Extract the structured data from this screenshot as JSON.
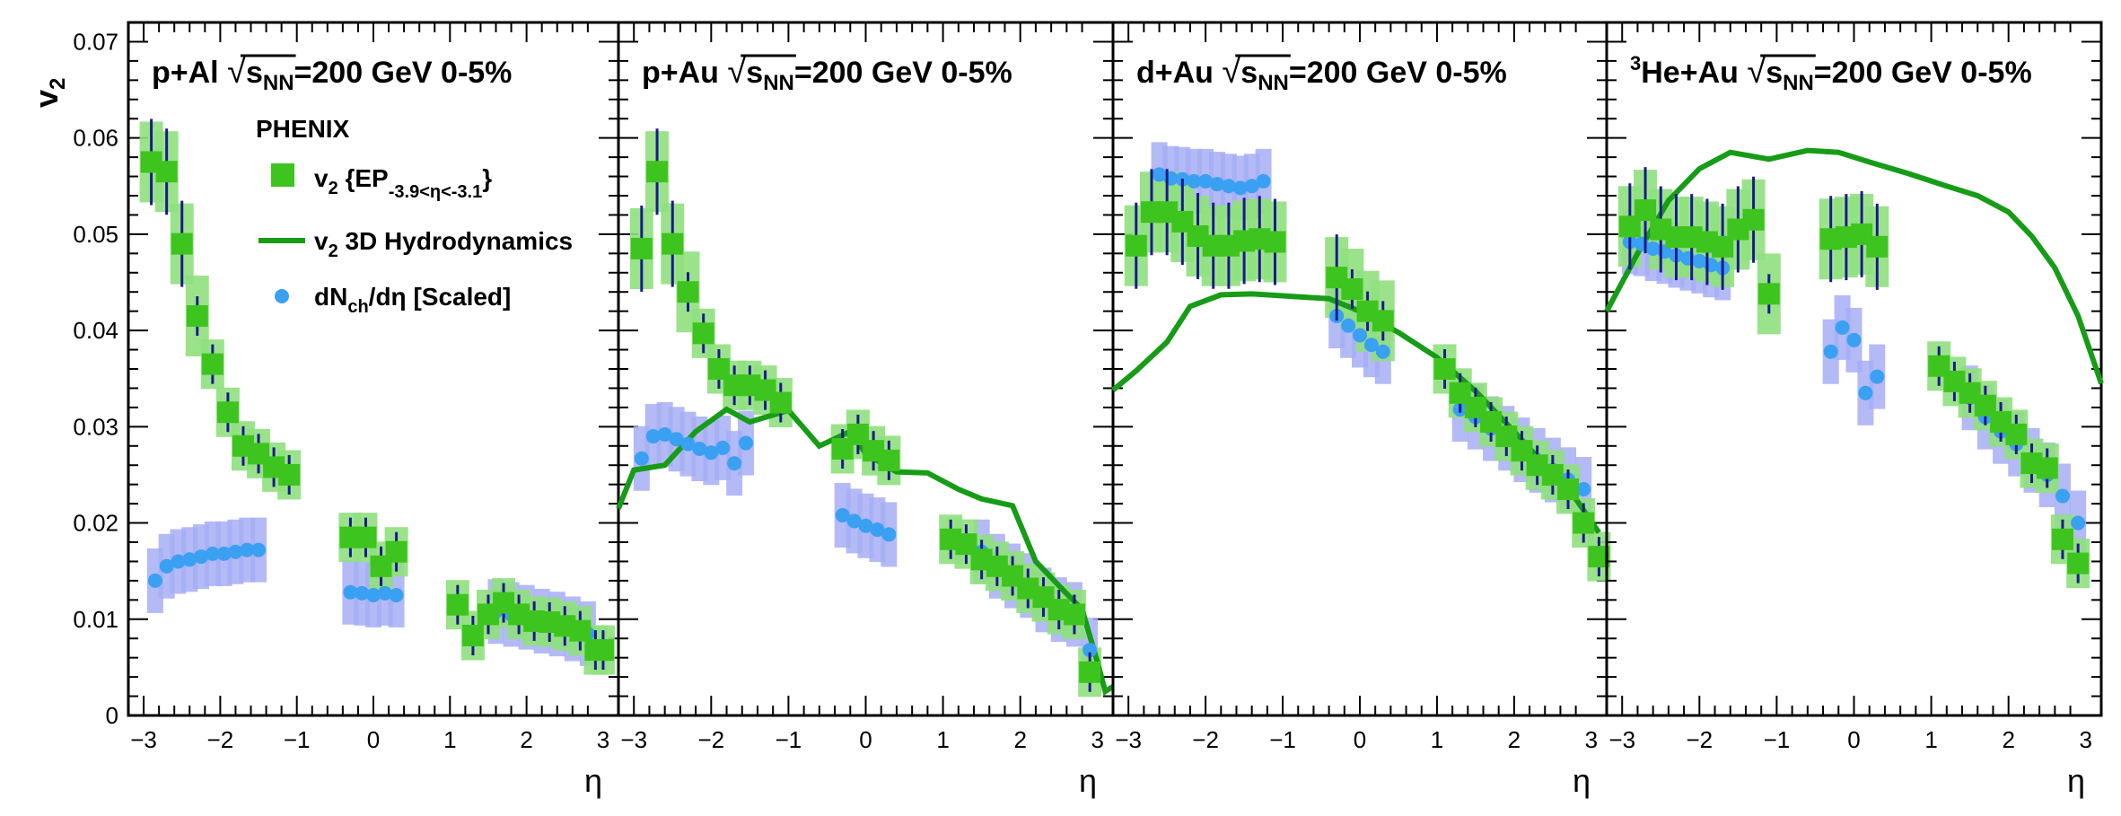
{
  "chart_data": {
    "type": "scatter",
    "ylabel": "v2",
    "xlabel": "η",
    "ylim": [
      0,
      0.072
    ],
    "yticks": [
      "0",
      "0.01",
      "0.02",
      "0.03",
      "0.04",
      "0.05",
      "0.06",
      "0.07"
    ],
    "xticks": [
      "−3",
      "−2",
      "−1",
      "0",
      "1",
      "2",
      "3"
    ],
    "xlim": [
      -3.2,
      3.2
    ],
    "experiment": "PHENIX",
    "legend": {
      "ep": "v2 {EP-3.9<η<-3.1}",
      "hydro": "v2 3D Hydrodynamics",
      "dndeta": "dNch/dη [Scaled]"
    },
    "colors": {
      "ep": "#3ec41e",
      "ep_sys": "#8fe07e",
      "hydro": "#169c16",
      "dndeta": "#3aa0f2",
      "dndeta_sys": "#a6aef5",
      "stat": "#1a1a8c"
    },
    "panels": [
      {
        "system": "p+Al",
        "energy": "=200 GeV 0-5%",
        "ep": [
          [
            -2.9,
            0.0575
          ],
          [
            -2.7,
            0.0565
          ],
          [
            -2.5,
            0.049
          ],
          [
            -2.3,
            0.0415
          ],
          [
            -2.1,
            0.0365
          ],
          [
            -1.9,
            0.0315
          ],
          [
            -1.7,
            0.028
          ],
          [
            -1.5,
            0.0272
          ],
          [
            -1.3,
            0.0258
          ],
          [
            -1.1,
            0.025
          ],
          [
            -0.3,
            0.0185
          ],
          [
            -0.1,
            0.0185
          ],
          [
            0.1,
            0.0155
          ],
          [
            0.3,
            0.017
          ],
          [
            1.1,
            0.0115
          ],
          [
            1.3,
            0.0083
          ],
          [
            1.5,
            0.0105
          ],
          [
            1.7,
            0.0117
          ],
          [
            1.9,
            0.0105
          ],
          [
            2.1,
            0.0098
          ],
          [
            2.3,
            0.0097
          ],
          [
            2.5,
            0.0093
          ],
          [
            2.7,
            0.0088
          ],
          [
            2.9,
            0.0068
          ],
          [
            3.0,
            0.0068
          ]
        ],
        "dndeta": [
          [
            -2.85,
            0.014
          ],
          [
            -2.7,
            0.0155
          ],
          [
            -2.55,
            0.016
          ],
          [
            -2.4,
            0.0162
          ],
          [
            -2.25,
            0.0165
          ],
          [
            -2.1,
            0.0168
          ],
          [
            -1.95,
            0.0168
          ],
          [
            -1.8,
            0.017
          ],
          [
            -1.65,
            0.0172
          ],
          [
            -1.5,
            0.0172
          ],
          [
            -0.3,
            0.0128
          ],
          [
            -0.15,
            0.0127
          ],
          [
            0,
            0.0125
          ],
          [
            0.15,
            0.0127
          ],
          [
            0.3,
            0.0125
          ],
          [
            1.6,
            0.0108
          ],
          [
            1.8,
            0.0105
          ],
          [
            2.0,
            0.0102
          ],
          [
            2.2,
            0.0098
          ],
          [
            2.4,
            0.0095
          ],
          [
            2.6,
            0.009
          ],
          [
            2.8,
            0.0085
          ]
        ],
        "hydro": []
      },
      {
        "system": "p+Au",
        "energy": "=200 GeV 0-5%",
        "ep": [
          [
            -2.9,
            0.0485
          ],
          [
            -2.7,
            0.0565
          ],
          [
            -2.5,
            0.049
          ],
          [
            -2.3,
            0.044
          ],
          [
            -2.1,
            0.0397
          ],
          [
            -1.9,
            0.036
          ],
          [
            -1.7,
            0.0343
          ],
          [
            -1.5,
            0.0343
          ],
          [
            -1.3,
            0.0338
          ],
          [
            -1.1,
            0.0325
          ],
          [
            -0.3,
            0.0277
          ],
          [
            -0.1,
            0.0292
          ],
          [
            0.1,
            0.0275
          ],
          [
            0.3,
            0.0265
          ],
          [
            1.1,
            0.0183
          ],
          [
            1.3,
            0.0178
          ],
          [
            1.5,
            0.0162
          ],
          [
            1.7,
            0.0155
          ],
          [
            1.9,
            0.0145
          ],
          [
            2.1,
            0.0132
          ],
          [
            2.3,
            0.0123
          ],
          [
            2.5,
            0.011
          ],
          [
            2.7,
            0.0105
          ],
          [
            2.9,
            0.0045
          ]
        ],
        "dndeta": [
          [
            -2.9,
            0.0267
          ],
          [
            -2.75,
            0.029
          ],
          [
            -2.6,
            0.0292
          ],
          [
            -2.45,
            0.0287
          ],
          [
            -2.3,
            0.0282
          ],
          [
            -2.15,
            0.0277
          ],
          [
            -2.0,
            0.0273
          ],
          [
            -1.85,
            0.0278
          ],
          [
            -1.7,
            0.0262
          ],
          [
            -1.55,
            0.0283
          ],
          [
            -0.3,
            0.0208
          ],
          [
            -0.15,
            0.0202
          ],
          [
            0,
            0.0197
          ],
          [
            0.15,
            0.0193
          ],
          [
            0.3,
            0.0188
          ],
          [
            1.5,
            0.017
          ],
          [
            1.7,
            0.0155
          ],
          [
            1.9,
            0.0145
          ],
          [
            2.1,
            0.0135
          ],
          [
            2.3,
            0.012
          ],
          [
            2.5,
            0.011
          ],
          [
            2.7,
            0.0105
          ],
          [
            2.9,
            0.0068
          ]
        ],
        "hydro": [
          [
            -3.2,
            0.0215
          ],
          [
            -3.0,
            0.0255
          ],
          [
            -2.6,
            0.026
          ],
          [
            -2.2,
            0.0295
          ],
          [
            -1.8,
            0.0318
          ],
          [
            -1.5,
            0.0305
          ],
          [
            -1.0,
            0.0317
          ],
          [
            -0.6,
            0.028
          ],
          [
            -0.2,
            0.0295
          ],
          [
            0.0,
            0.0272
          ],
          [
            0.4,
            0.0253
          ],
          [
            0.8,
            0.0252
          ],
          [
            1.2,
            0.0235
          ],
          [
            1.5,
            0.0225
          ],
          [
            1.9,
            0.0218
          ],
          [
            2.2,
            0.016
          ],
          [
            2.5,
            0.0135
          ],
          [
            2.8,
            0.011
          ],
          [
            3.0,
            0.0055
          ],
          [
            3.1,
            0.0025
          ],
          [
            3.2,
            0.003
          ]
        ]
      },
      {
        "system": "d+Au",
        "energy": "=200 GeV 0-5%",
        "ep": [
          [
            -2.9,
            0.0488
          ],
          [
            -2.7,
            0.0523
          ],
          [
            -2.5,
            0.0523
          ],
          [
            -2.3,
            0.0513
          ],
          [
            -2.1,
            0.0498
          ],
          [
            -1.9,
            0.0488
          ],
          [
            -1.7,
            0.0488
          ],
          [
            -1.5,
            0.0493
          ],
          [
            -1.3,
            0.0495
          ],
          [
            -1.1,
            0.0492
          ],
          [
            -0.3,
            0.0455
          ],
          [
            -0.1,
            0.0443
          ],
          [
            0.1,
            0.042
          ],
          [
            0.3,
            0.041
          ],
          [
            1.1,
            0.036
          ],
          [
            1.3,
            0.0335
          ],
          [
            1.5,
            0.032
          ],
          [
            1.7,
            0.0305
          ],
          [
            1.9,
            0.029
          ],
          [
            2.1,
            0.0275
          ],
          [
            2.3,
            0.026
          ],
          [
            2.5,
            0.025
          ],
          [
            2.7,
            0.0235
          ],
          [
            2.9,
            0.02
          ],
          [
            3.1,
            0.0165
          ]
        ],
        "dndeta": [
          [
            -2.6,
            0.0562
          ],
          [
            -2.45,
            0.0558
          ],
          [
            -2.3,
            0.0557
          ],
          [
            -2.15,
            0.0555
          ],
          [
            -2.0,
            0.0555
          ],
          [
            -1.85,
            0.0552
          ],
          [
            -1.7,
            0.055
          ],
          [
            -1.55,
            0.0548
          ],
          [
            -1.4,
            0.055
          ],
          [
            -1.25,
            0.0555
          ],
          [
            -0.3,
            0.0415
          ],
          [
            -0.15,
            0.0405
          ],
          [
            0,
            0.0395
          ],
          [
            0.15,
            0.0385
          ],
          [
            0.3,
            0.0378
          ],
          [
            1.3,
            0.0318
          ],
          [
            1.5,
            0.031
          ],
          [
            1.7,
            0.0298
          ],
          [
            1.9,
            0.0288
          ],
          [
            2.1,
            0.0276
          ],
          [
            2.3,
            0.0265
          ],
          [
            2.5,
            0.0255
          ],
          [
            2.7,
            0.0245
          ],
          [
            2.9,
            0.0235
          ]
        ],
        "hydro": [
          [
            -3.2,
            0.0338
          ],
          [
            -2.9,
            0.0358
          ],
          [
            -2.5,
            0.0388
          ],
          [
            -2.2,
            0.0425
          ],
          [
            -1.8,
            0.0437
          ],
          [
            -1.4,
            0.0438
          ],
          [
            -0.8,
            0.0435
          ],
          [
            -0.4,
            0.0433
          ],
          [
            0.0,
            0.042
          ],
          [
            0.5,
            0.0398
          ],
          [
            1.0,
            0.0372
          ],
          [
            1.5,
            0.0337
          ],
          [
            2.0,
            0.0295
          ],
          [
            2.4,
            0.026
          ],
          [
            2.8,
            0.0225
          ],
          [
            3.1,
            0.019
          ]
        ]
      },
      {
        "system": "He+Au",
        "system_superscript": "3",
        "energy": "=200 GeV 0-5%",
        "ep": [
          [
            -2.9,
            0.0508
          ],
          [
            -2.7,
            0.0525
          ],
          [
            -2.5,
            0.0505
          ],
          [
            -2.3,
            0.0497
          ],
          [
            -2.1,
            0.0497
          ],
          [
            -1.9,
            0.0492
          ],
          [
            -1.7,
            0.0487
          ],
          [
            -1.5,
            0.0505
          ],
          [
            -1.3,
            0.0515
          ],
          [
            -1.1,
            0.0438
          ],
          [
            -0.3,
            0.0495
          ],
          [
            -0.1,
            0.0497
          ],
          [
            0.1,
            0.05
          ],
          [
            0.3,
            0.0487
          ],
          [
            1.1,
            0.0363
          ],
          [
            1.3,
            0.0347
          ],
          [
            1.5,
            0.0335
          ],
          [
            1.7,
            0.0322
          ],
          [
            1.9,
            0.0305
          ],
          [
            2.1,
            0.0292
          ],
          [
            2.3,
            0.0262
          ],
          [
            2.5,
            0.0257
          ],
          [
            2.7,
            0.0183
          ],
          [
            2.9,
            0.0158
          ]
        ],
        "dndeta": [
          [
            -2.9,
            0.0492
          ],
          [
            -2.75,
            0.049
          ],
          [
            -2.6,
            0.0485
          ],
          [
            -2.45,
            0.0482
          ],
          [
            -2.3,
            0.0478
          ],
          [
            -2.15,
            0.0475
          ],
          [
            -2.0,
            0.0472
          ],
          [
            -1.85,
            0.0468
          ],
          [
            -1.7,
            0.0465
          ],
          [
            -0.3,
            0.0378
          ],
          [
            -0.15,
            0.0403
          ],
          [
            0,
            0.039
          ],
          [
            0.15,
            0.0335
          ],
          [
            0.3,
            0.0352
          ],
          [
            1.5,
            0.033
          ],
          [
            1.7,
            0.031
          ],
          [
            1.9,
            0.0295
          ],
          [
            2.1,
            0.0282
          ],
          [
            2.3,
            0.0265
          ],
          [
            2.5,
            0.025
          ],
          [
            2.7,
            0.0228
          ],
          [
            2.9,
            0.02
          ]
        ],
        "hydro": [
          [
            -3.2,
            0.042
          ],
          [
            -2.8,
            0.048
          ],
          [
            -2.4,
            0.0535
          ],
          [
            -2.0,
            0.0568
          ],
          [
            -1.6,
            0.0585
          ],
          [
            -1.1,
            0.0578
          ],
          [
            -0.6,
            0.0587
          ],
          [
            -0.2,
            0.0585
          ],
          [
            0.2,
            0.0575
          ],
          [
            0.7,
            0.0563
          ],
          [
            1.2,
            0.055
          ],
          [
            1.6,
            0.054
          ],
          [
            2.0,
            0.0523
          ],
          [
            2.3,
            0.0498
          ],
          [
            2.6,
            0.0465
          ],
          [
            2.9,
            0.0415
          ],
          [
            3.2,
            0.0345
          ]
        ]
      }
    ]
  }
}
